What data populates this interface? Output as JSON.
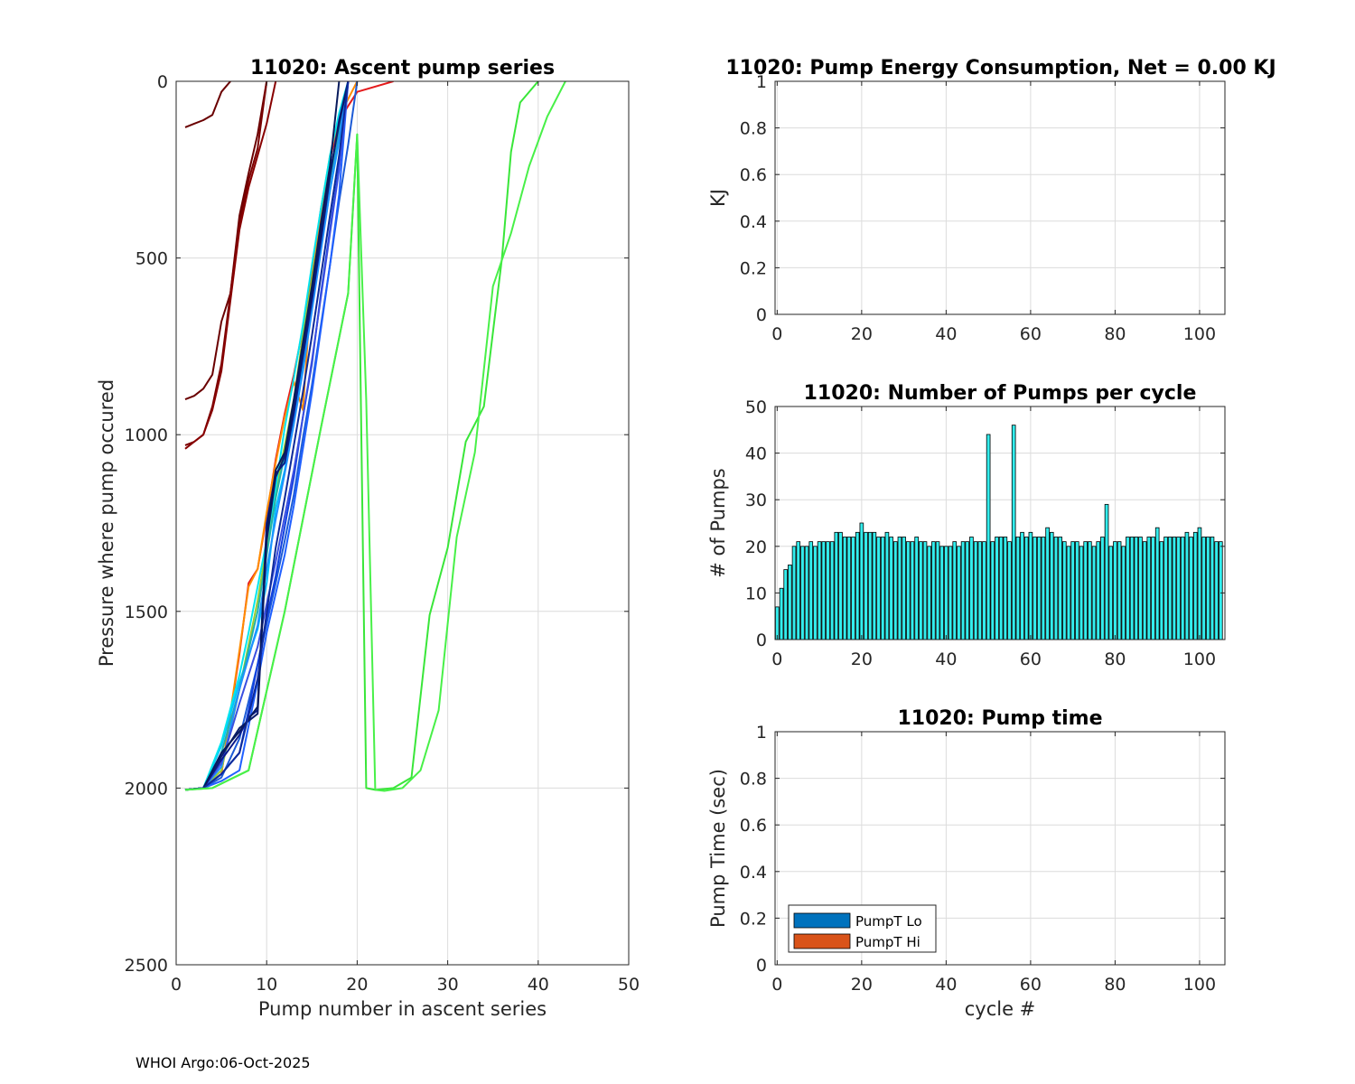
{
  "footer": {
    "text": "WHOI Argo:06-Oct-2025"
  },
  "chart_data": [
    {
      "id": "ascent",
      "type": "line",
      "title": "11020: Ascent pump series",
      "xlabel": "Pump number in ascent series",
      "ylabel": "Pressure where pump occured",
      "xlim": [
        0,
        50
      ],
      "ylim": [
        0,
        2500
      ],
      "y_reversed": true,
      "grid": true,
      "xticks": [
        "0",
        "10",
        "20",
        "30",
        "40",
        "50"
      ],
      "yticks": [
        "0",
        "500",
        "1000",
        "1500",
        "2000",
        "2500"
      ],
      "series": [
        {
          "name": "early-1",
          "color": "#6a0000",
          "x": [
            1,
            2,
            3,
            4,
            5,
            6
          ],
          "y": [
            130,
            120,
            110,
            95,
            30,
            0
          ]
        },
        {
          "name": "early-2",
          "color": "#6a0000",
          "x": [
            1,
            2,
            3,
            4,
            5,
            6,
            7,
            8,
            9,
            10
          ],
          "y": [
            900,
            890,
            870,
            830,
            680,
            600,
            380,
            260,
            150,
            0
          ]
        },
        {
          "name": "early-3",
          "color": "#7a0000",
          "x": [
            1,
            2,
            3,
            4,
            5,
            6,
            7,
            8,
            9,
            10
          ],
          "y": [
            1030,
            1020,
            1000,
            920,
            800,
            600,
            400,
            280,
            190,
            0
          ]
        },
        {
          "name": "early-4",
          "color": "#880000",
          "x": [
            1,
            2,
            3,
            4,
            5,
            6,
            7,
            8,
            9,
            10,
            11
          ],
          "y": [
            1040,
            1020,
            1000,
            930,
            820,
            620,
            420,
            300,
            210,
            120,
            0
          ]
        },
        {
          "name": "red",
          "color": "#e41a1c",
          "x": [
            1,
            3,
            5,
            7,
            8,
            9,
            10,
            11,
            12,
            13,
            14,
            15,
            16,
            17,
            18,
            20,
            24
          ],
          "y": [
            2005,
            2000,
            1960,
            1620,
            1420,
            1380,
            1230,
            1070,
            940,
            830,
            700,
            540,
            360,
            220,
            110,
            30,
            0
          ]
        },
        {
          "name": "orange",
          "color": "#ff8c00",
          "x": [
            1,
            3,
            5,
            7,
            8,
            9,
            10,
            11,
            12,
            13,
            14,
            15,
            16,
            17,
            18,
            20
          ],
          "y": [
            2005,
            2000,
            1960,
            1610,
            1430,
            1380,
            1220,
            1080,
            950,
            850,
            930,
            560,
            370,
            210,
            100,
            0
          ]
        },
        {
          "name": "yellow-green",
          "color": "#9acd32",
          "x": [
            1,
            3,
            5,
            7,
            9,
            11,
            13,
            14,
            15,
            16,
            17,
            18,
            19
          ],
          "y": [
            2005,
            2000,
            1950,
            1720,
            1470,
            1160,
            900,
            720,
            560,
            410,
            260,
            150,
            0
          ]
        },
        {
          "name": "cyan-1",
          "color": "#00bfff",
          "x": [
            1,
            3,
            5,
            7,
            9,
            10,
            11,
            12,
            13,
            14,
            15,
            16,
            17,
            18,
            19
          ],
          "y": [
            2005,
            2000,
            1880,
            1700,
            1550,
            1420,
            1210,
            1100,
            960,
            800,
            640,
            470,
            310,
            170,
            0
          ]
        },
        {
          "name": "cyan-2",
          "color": "#00e5ee",
          "x": [
            1,
            3,
            5,
            7,
            8,
            9,
            10,
            11,
            12,
            13,
            14,
            15,
            16,
            17,
            18,
            19
          ],
          "y": [
            2005,
            2000,
            1870,
            1680,
            1560,
            1430,
            1300,
            1150,
            980,
            840,
            690,
            520,
            360,
            210,
            90,
            0
          ]
        },
        {
          "name": "teal",
          "color": "#20b2aa",
          "x": [
            1,
            3,
            5,
            7,
            9,
            11,
            13,
            15,
            17,
            19
          ],
          "y": [
            2005,
            2000,
            1900,
            1720,
            1500,
            1180,
            930,
            620,
            280,
            0
          ]
        },
        {
          "name": "blue-1",
          "color": "#1e90ff",
          "x": [
            1,
            3,
            5,
            6,
            7,
            8,
            9,
            10,
            11,
            12,
            13,
            14,
            15,
            16,
            17,
            18,
            19
          ],
          "y": [
            2005,
            2000,
            1940,
            1830,
            1720,
            1630,
            1540,
            1380,
            1240,
            1110,
            970,
            820,
            650,
            480,
            310,
            160,
            0
          ]
        },
        {
          "name": "blue-2",
          "color": "#1c5bd6",
          "x": [
            1,
            3,
            5,
            7,
            9,
            11,
            12,
            13,
            14,
            15,
            16,
            17,
            18,
            19,
            20
          ],
          "y": [
            2005,
            2000,
            1970,
            1860,
            1650,
            1420,
            1300,
            1170,
            1010,
            860,
            690,
            520,
            340,
            180,
            0
          ]
        },
        {
          "name": "blue-3",
          "color": "#1040e0",
          "x": [
            1,
            3,
            5,
            7,
            8,
            9,
            10,
            11,
            12,
            13,
            14,
            15,
            16,
            17,
            18,
            19
          ],
          "y": [
            2005,
            2000,
            1960,
            1900,
            1780,
            1650,
            1520,
            1400,
            1260,
            1120,
            950,
            800,
            600,
            420,
            240,
            0
          ]
        },
        {
          "name": "blue-4",
          "color": "#2060ff",
          "x": [
            1,
            3,
            5,
            7,
            9,
            10,
            11,
            12,
            13,
            14,
            15,
            16,
            17,
            18,
            19
          ],
          "y": [
            2005,
            2000,
            1980,
            1950,
            1700,
            1560,
            1450,
            1340,
            1200,
            1040,
            880,
            700,
            520,
            320,
            0
          ]
        },
        {
          "name": "blue-5",
          "color": "#3a4fe0",
          "x": [
            1,
            3,
            5,
            7,
            9,
            10,
            11,
            12,
            13,
            14,
            15,
            16,
            17,
            18,
            19
          ],
          "y": [
            2005,
            2000,
            1930,
            1760,
            1600,
            1480,
            1360,
            1230,
            1100,
            950,
            790,
            610,
            430,
            250,
            0
          ]
        },
        {
          "name": "navy-1",
          "color": "#0a1a8a",
          "x": [
            1,
            3,
            5,
            7,
            8,
            9,
            10,
            11,
            12,
            13,
            14,
            15,
            16,
            17,
            18,
            19
          ],
          "y": [
            2005,
            2000,
            1920,
            1850,
            1800,
            1780,
            1250,
            1110,
            1080,
            940,
            780,
            620,
            450,
            270,
            110,
            0
          ]
        },
        {
          "name": "navy-2",
          "color": "#0b1c6b",
          "x": [
            1,
            3,
            5,
            7,
            9,
            10,
            11,
            12,
            13,
            14,
            15,
            16,
            17,
            18,
            19
          ],
          "y": [
            2005,
            2000,
            1910,
            1830,
            1790,
            1300,
            1120,
            1060,
            920,
            760,
            600,
            430,
            260,
            120,
            0
          ]
        },
        {
          "name": "navy-3",
          "color": "#071a5c",
          "x": [
            1,
            3,
            5,
            7,
            9,
            10,
            11,
            12,
            13,
            14,
            15,
            16,
            17,
            18
          ],
          "y": [
            2005,
            2000,
            1900,
            1840,
            1770,
            1280,
            1100,
            1050,
            900,
            740,
            580,
            400,
            240,
            0
          ]
        },
        {
          "name": "navy-4",
          "color": "#0d2a99",
          "x": [
            1,
            3,
            5,
            7,
            9,
            11,
            12,
            13,
            14,
            15,
            16,
            17,
            18,
            19
          ],
          "y": [
            2005,
            2000,
            1960,
            1900,
            1690,
            1320,
            1180,
            1030,
            880,
            720,
            550,
            380,
            210,
            0
          ]
        },
        {
          "name": "green-1",
          "color": "#39e639",
          "x": [
            1,
            4,
            8,
            12,
            16,
            19,
            20,
            21,
            22,
            24,
            26,
            28,
            30,
            32,
            34,
            36,
            37,
            38,
            40
          ],
          "y": [
            2005,
            2000,
            1950,
            1500,
            980,
            600,
            150,
            2000,
            2005,
            2000,
            1970,
            1510,
            1320,
            1020,
            920,
            500,
            200,
            60,
            0
          ]
        },
        {
          "name": "green-2",
          "color": "#48f048",
          "x": [
            1,
            4,
            8,
            12,
            16,
            19,
            20,
            21,
            22,
            23,
            25,
            27,
            29,
            31,
            33,
            35,
            37,
            39,
            41,
            43
          ],
          "y": [
            2005,
            2000,
            1950,
            1500,
            980,
            600,
            150,
            900,
            2005,
            2008,
            2000,
            1950,
            1780,
            1290,
            1050,
            580,
            430,
            240,
            100,
            0
          ]
        }
      ]
    },
    {
      "id": "energy",
      "type": "line",
      "title": "11020: Pump Energy Consumption,  Net =   0.00 KJ",
      "xlabel": "",
      "ylabel": "KJ",
      "xlim": [
        -0.5,
        106
      ],
      "ylim": [
        0,
        1
      ],
      "grid": true,
      "xticks": [
        "0",
        "20",
        "40",
        "60",
        "80",
        "100"
      ],
      "yticks": [
        "0",
        "0.2",
        "0.4",
        "0.6",
        "0.8",
        "1"
      ],
      "series": []
    },
    {
      "id": "npumps",
      "type": "bar",
      "title": "11020: Number of Pumps per cycle",
      "xlabel": "",
      "ylabel": "# of Pumps",
      "xlim": [
        -0.5,
        106
      ],
      "ylim": [
        0,
        50
      ],
      "grid": true,
      "bar_color": "#33eded",
      "xticks": [
        "0",
        "20",
        "40",
        "60",
        "80",
        "100"
      ],
      "yticks": [
        "0",
        "10",
        "20",
        "30",
        "40",
        "50"
      ],
      "x": [
        0,
        1,
        2,
        3,
        4,
        5,
        6,
        7,
        8,
        9,
        10,
        11,
        12,
        13,
        14,
        15,
        16,
        17,
        18,
        19,
        20,
        21,
        22,
        23,
        24,
        25,
        26,
        27,
        28,
        29,
        30,
        31,
        32,
        33,
        34,
        35,
        36,
        37,
        38,
        39,
        40,
        41,
        42,
        43,
        44,
        45,
        46,
        47,
        48,
        49,
        50,
        51,
        52,
        53,
        54,
        55,
        56,
        57,
        58,
        59,
        60,
        61,
        62,
        63,
        64,
        65,
        66,
        67,
        68,
        69,
        70,
        71,
        72,
        73,
        74,
        75,
        76,
        77,
        78,
        79,
        80,
        81,
        82,
        83,
        84,
        85,
        86,
        87,
        88,
        89,
        90,
        91,
        92,
        93,
        94,
        95,
        96,
        97,
        98,
        99,
        100,
        101,
        102,
        103,
        104,
        105
      ],
      "values": [
        7,
        11,
        15,
        16,
        20,
        21,
        20,
        20,
        21,
        20,
        21,
        21,
        21,
        21,
        23,
        23,
        22,
        22,
        22,
        23,
        25,
        23,
        23,
        23,
        22,
        22,
        23,
        22,
        21,
        22,
        22,
        21,
        21,
        22,
        21,
        21,
        20,
        21,
        21,
        20,
        20,
        20,
        21,
        20,
        21,
        21,
        22,
        21,
        21,
        21,
        44,
        21,
        22,
        22,
        22,
        21,
        46,
        22,
        23,
        22,
        23,
        22,
        22,
        22,
        24,
        23,
        22,
        22,
        21,
        20,
        21,
        21,
        20,
        21,
        21,
        20,
        21,
        22,
        29,
        20,
        21,
        21,
        20,
        22,
        22,
        22,
        22,
        21,
        22,
        22,
        24,
        21,
        22,
        22,
        22,
        22,
        22,
        23,
        22,
        23,
        24,
        22,
        22,
        22,
        21,
        21
      ]
    },
    {
      "id": "pumptime",
      "type": "bar",
      "title": "11020: Pump time",
      "xlabel": "cycle #",
      "ylabel": "Pump Time (sec)",
      "xlim": [
        -0.5,
        106
      ],
      "ylim": [
        0,
        1
      ],
      "grid": true,
      "xticks": [
        "0",
        "20",
        "40",
        "60",
        "80",
        "100"
      ],
      "yticks": [
        "0",
        "0.2",
        "0.4",
        "0.6",
        "0.8",
        "1"
      ],
      "legend_position": "bottom-left",
      "legend": [
        {
          "label": "PumpT Lo",
          "color": "#0072bd"
        },
        {
          "label": "PumpT Hi",
          "color": "#d95319"
        }
      ],
      "series": []
    }
  ]
}
